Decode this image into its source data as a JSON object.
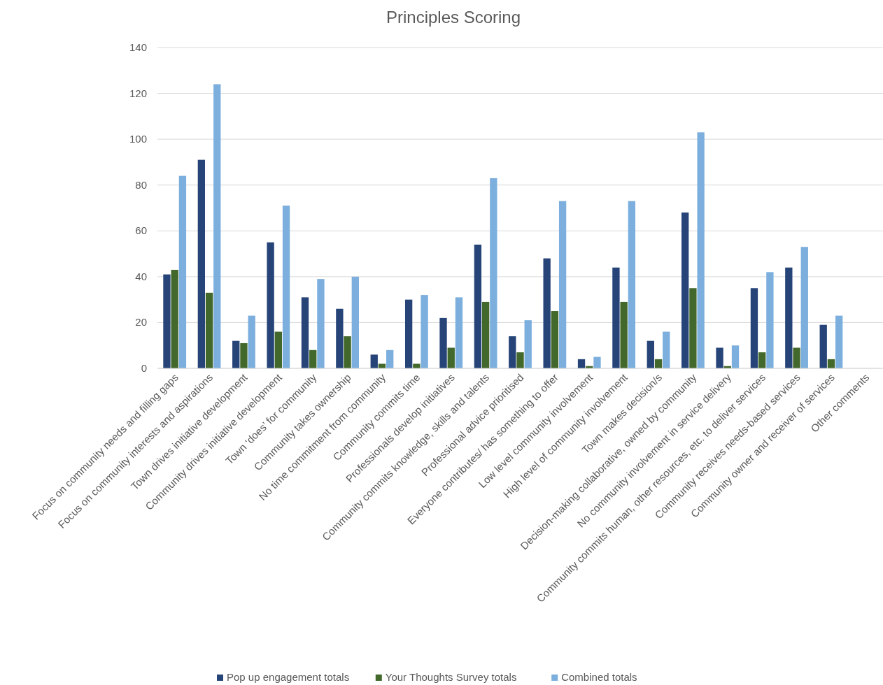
{
  "chart_data": {
    "type": "bar",
    "title": "Principles Scoring",
    "categories": [
      "Focus on community needs and filling gaps",
      "Focus on community interests and aspirations",
      "Town drives initiative development",
      "Community drives initiative development",
      "Town ‘does’ for community",
      "Community takes ownership",
      "No time commitment from community",
      "Community commits time",
      "Professionals develop initiatives",
      "Community commits knowledge, skills and talents",
      "Professional advice prioritised",
      "Everyone contributes/ has something to offer",
      "Low level community involvement",
      "High level of community involvement",
      "Town makes decision/s",
      "Decision-making collaborative, owned by community",
      "No community involvement in service delivery",
      "Community commits human, other resources, etc. to deliver services",
      "Community receives needs-based services",
      "Community owner and receiver of services",
      "Other comments"
    ],
    "series": [
      {
        "name": "Pop up engagement totals",
        "color": "#264478",
        "values": [
          41,
          91,
          12,
          55,
          31,
          26,
          6,
          30,
          22,
          54,
          14,
          48,
          4,
          44,
          12,
          68,
          9,
          35,
          44,
          19,
          0
        ]
      },
      {
        "name": "Your Thoughts Survey totals",
        "color": "#43682b",
        "values": [
          43,
          33,
          11,
          16,
          8,
          14,
          2,
          2,
          9,
          29,
          7,
          25,
          1,
          29,
          4,
          35,
          1,
          7,
          9,
          4,
          0
        ]
      },
      {
        "name": "Combined totals",
        "color": "#7cafdd",
        "values": [
          84,
          124,
          23,
          71,
          39,
          40,
          8,
          32,
          31,
          83,
          21,
          73,
          5,
          73,
          16,
          103,
          10,
          42,
          53,
          23,
          0
        ]
      }
    ],
    "ylim": [
      0,
      140
    ],
    "yticks": [
      0,
      20,
      40,
      60,
      80,
      100,
      120,
      140
    ],
    "grid": "y",
    "legend": "bottom"
  }
}
